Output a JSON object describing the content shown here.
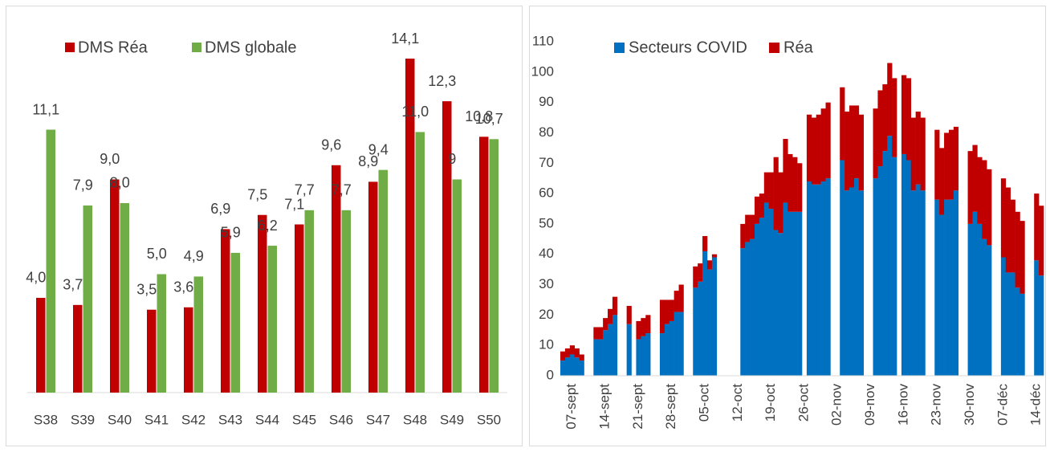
{
  "chart_data": [
    {
      "type": "bar",
      "categories": [
        "S38",
        "S39",
        "S40",
        "S41",
        "S42",
        "S43",
        "S44",
        "S45",
        "S46",
        "S47",
        "S48",
        "S49",
        "S50"
      ],
      "series": [
        {
          "name": "DMS Réa",
          "color": "#c00000",
          "values": [
            4.0,
            3.7,
            9.0,
            3.5,
            3.6,
            6.9,
            7.5,
            7.1,
            9.6,
            8.9,
            14.1,
            12.3,
            10.8
          ],
          "value_labels": [
            "4,0",
            "3,7",
            "9,0",
            "3,5",
            "3,6",
            "6,9",
            "7,5",
            "7,1",
            "9,6",
            "8,9",
            "14,1",
            "12,3",
            "10,8"
          ]
        },
        {
          "name": "DMS globale",
          "color": "#70ad47",
          "values": [
            11.1,
            7.9,
            8.0,
            5.0,
            4.9,
            5.9,
            6.2,
            7.7,
            7.7,
            9.4,
            11.0,
            9,
            10.7
          ],
          "value_labels": [
            "11,1",
            "7,9",
            "8,0",
            "5,0",
            "4,9",
            "5,9",
            "6,2",
            "7,7",
            "7,7",
            "9,4",
            "11,0",
            "9",
            "10,7"
          ]
        }
      ],
      "legend": "top-left"
    },
    {
      "type": "stacked_bar",
      "categories": [
        null,
        null,
        "07-sept",
        null,
        null,
        null,
        null,
        null,
        null,
        "14-sept",
        null,
        null,
        null,
        null,
        null,
        null,
        "21-sept",
        null,
        null,
        null,
        null,
        null,
        null,
        "28-sept",
        null,
        null,
        null,
        null,
        null,
        null,
        "05-oct",
        null,
        null,
        null,
        null,
        null,
        null,
        "12-oct",
        null,
        null,
        null,
        null,
        null,
        null,
        "19-oct",
        null,
        null,
        null,
        null,
        null,
        null,
        "26-oct",
        null,
        null,
        null,
        null,
        null,
        null,
        "02-nov",
        null,
        null,
        null,
        null,
        null,
        null,
        "09-nov",
        null,
        null,
        null,
        null,
        null,
        null,
        "16-nov",
        null,
        null,
        null,
        null,
        null,
        null,
        "23-nov",
        null,
        null,
        null,
        null,
        null,
        null,
        "30-nov",
        null,
        null,
        null,
        null,
        null,
        null,
        "07-déc",
        null,
        null,
        null,
        null,
        null,
        null,
        "14-déc",
        null
      ],
      "series": [
        {
          "name": "Secteurs COVID",
          "color": "#0070c0",
          "values": [
            5,
            6,
            7,
            6,
            5,
            null,
            null,
            12,
            12,
            15,
            17,
            20,
            null,
            null,
            17,
            null,
            12,
            13,
            14,
            null,
            null,
            14,
            17,
            18,
            21,
            21,
            null,
            null,
            29,
            31,
            41,
            35,
            39,
            null,
            null,
            null,
            null,
            null,
            42,
            44,
            45,
            50,
            52,
            57,
            55,
            48,
            47,
            57,
            54,
            54,
            54,
            null,
            64,
            63,
            63,
            64,
            65,
            null,
            null,
            71,
            61,
            62,
            65,
            61,
            null,
            null,
            65,
            69,
            74,
            79,
            72,
            null,
            73,
            71,
            61,
            63,
            61,
            null,
            null,
            58,
            53,
            58,
            58,
            61,
            null,
            null,
            50,
            54,
            50,
            45,
            43,
            null,
            null,
            39,
            34,
            34,
            29,
            27,
            null,
            null,
            38,
            33
          ]
        },
        {
          "name": "Réa",
          "color": "#c00000",
          "values": [
            3,
            3,
            3,
            3,
            2,
            null,
            null,
            4,
            4,
            4,
            5,
            6,
            null,
            null,
            6,
            null,
            6,
            6,
            6,
            null,
            null,
            11,
            8,
            7,
            7,
            9,
            null,
            null,
            7,
            6,
            5,
            3,
            1,
            null,
            null,
            null,
            null,
            null,
            8,
            9,
            8,
            9,
            8,
            10,
            12,
            24,
            20,
            21,
            19,
            18,
            16,
            null,
            22,
            22,
            23,
            24,
            25,
            null,
            null,
            24,
            26,
            27,
            24,
            25,
            null,
            null,
            23,
            25,
            22,
            24,
            26,
            null,
            26,
            27,
            24,
            24,
            24,
            null,
            null,
            23,
            22,
            22,
            23,
            21,
            null,
            null,
            24,
            22,
            22,
            26,
            25,
            null,
            null,
            26,
            28,
            24,
            25,
            24,
            null,
            null,
            22,
            23
          ]
        }
      ],
      "ylim": [
        0,
        110
      ],
      "yticks": [
        0,
        10,
        20,
        30,
        40,
        50,
        60,
        70,
        80,
        90,
        100,
        110
      ],
      "legend": "top-left"
    }
  ]
}
